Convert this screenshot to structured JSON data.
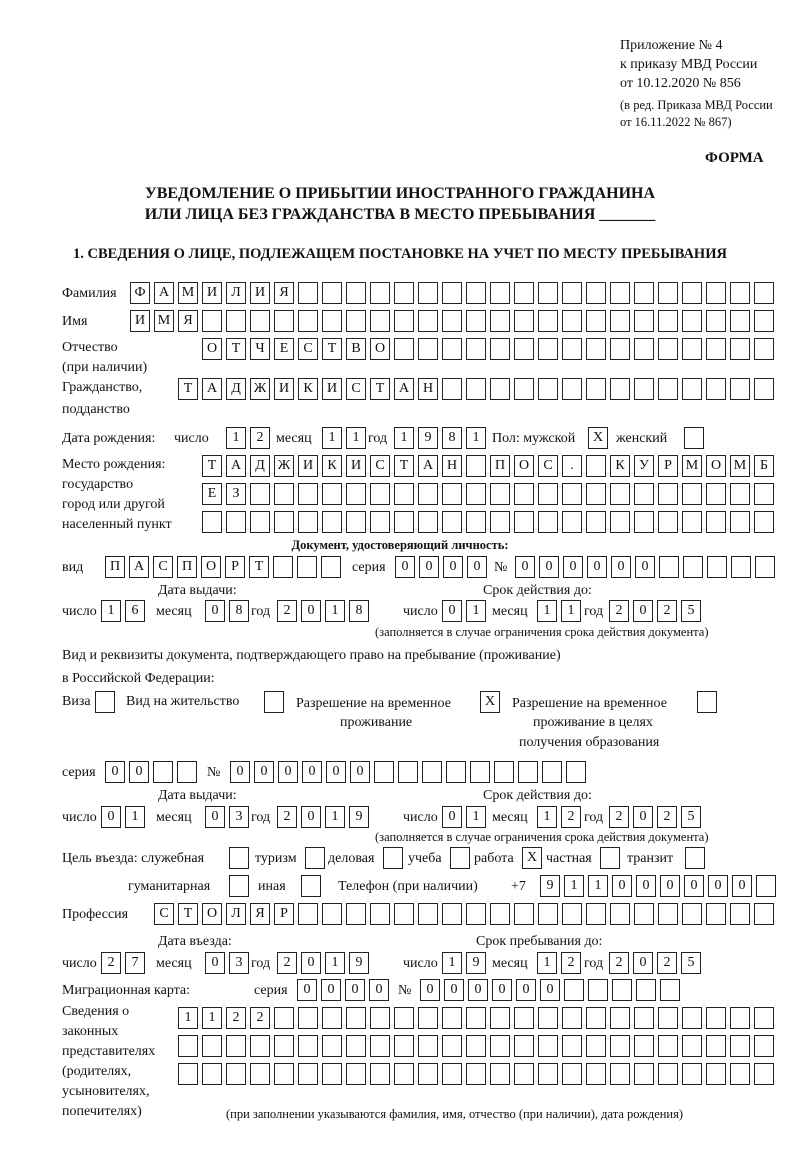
{
  "header": {
    "line1": "Приложение № 4",
    "line2": "к приказу МВД России",
    "line3": "от 10.12.2020 № 856",
    "line4": "(в ред. Приказа МВД России",
    "line5": "от 16.11.2022 № 867)",
    "form": "ФОРМА",
    "title1": "УВЕДОМЛЕНИЕ О ПРИБЫТИИ ИНОСТРАННОГО ГРАЖДАНИНА",
    "title2": "ИЛИ ЛИЦА БЕЗ ГРАЖДАНСТВА В МЕСТО ПРЕБЫВАНИЯ _______",
    "section1": "1. СВЕДЕНИЯ О ЛИЦЕ, ПОДЛЕЖАЩЕМ ПОСТАНОВКЕ НА УЧЕТ ПО МЕСТУ ПРЕБЫВАНИЯ"
  },
  "labels": {
    "surname": "Фамилия",
    "name": "Имя",
    "patronymic": "Отчество",
    "patronymic2": "(при наличии)",
    "citizenship": "Гражданство,",
    "citizenship2": "подданство",
    "dob": "Дата рождения:",
    "day": "число",
    "month": "месяц",
    "year": "год",
    "sex": "Пол: мужской",
    "female": "женский",
    "pob1": "Место рождения:",
    "pob2": "государство",
    "pob3": "город или другой",
    "pob4": "населенный пункт",
    "id_doc": "Документ, удостоверяющий личность:",
    "kind": "вид",
    "series": "серия",
    "number": "№",
    "issue_date": "Дата выдачи:",
    "valid_until": "Срок действия до:",
    "valid_note": "(заполняется в случае ограничения срока действия документа)",
    "right_doc1": "Вид и реквизиты документа, подтверждающего право на пребывание (проживание)",
    "right_doc2": "в Российской Федерации:",
    "visa": "Виза",
    "residence": "Вид на жительство",
    "temp1": "Разрешение на временное",
    "temp2": "проживание",
    "edu1": "Разрешение на временное",
    "edu2": "проживание в целях",
    "edu3": "получения образования",
    "purpose": "Цель въезда: служебная",
    "tourism": "туризм",
    "business": "деловая",
    "study": "учеба",
    "work": "работа",
    "private": "частная",
    "transit": "транзит",
    "humanitarian": "гуманитарная",
    "other": "иная",
    "phone": "Телефон (при наличии)",
    "phone_prefix": "+7",
    "profession": "Профессия",
    "entry_date": "Дата въезда:",
    "stay_until": "Срок пребывания до:",
    "migration_card": "Миграционная карта:",
    "rep1": "Сведения о",
    "rep2": "законных",
    "rep3": "представителях",
    "rep4": "(родителях,",
    "rep5": "усыновителях,",
    "rep6": "попечителях)",
    "rep_note": "(при заполнении указываются фамилия, имя, отчество (при наличии), дата рождения)"
  },
  "values": {
    "surname": "ФАМИЛИЯ",
    "name": "ИМЯ",
    "patronymic": "ОТЧЕСТВО",
    "citizenship": "ТАДЖИКИСТАН",
    "dob_day": "12",
    "dob_month": "11",
    "dob_year": "1981",
    "sex_male": "X",
    "sex_female": "",
    "pob_1": "ТАДЖИКИСТАН ПОС. КУРМОМБ",
    "pob_2": "ЕЗ",
    "pob_3": "",
    "id_kind": "ПАСПОРТ",
    "id_series": "0000",
    "id_number": "000000",
    "id_issue_day": "16",
    "id_issue_month": "08",
    "id_issue_year": "2018",
    "id_valid_day": "01",
    "id_valid_month": "11",
    "id_valid_year": "2025",
    "visa": "",
    "residence": "",
    "temp_residence": "X",
    "edu_residence": "",
    "rd_series": "00",
    "rd_number": "000000",
    "rd_issue_day": "01",
    "rd_issue_month": "03",
    "rd_issue_year": "2019",
    "rd_valid_day": "01",
    "rd_valid_month": "12",
    "rd_valid_year": "2025",
    "p_service": "",
    "p_tourism": "",
    "p_business": "",
    "p_study": "",
    "p_work": "X",
    "p_private": "",
    "p_transit": "",
    "p_humanitarian": "",
    "p_other": "",
    "phone": "911000000",
    "profession": "СТОЛЯР",
    "entry_day": "27",
    "entry_month": "03",
    "entry_year": "2019",
    "stay_day": "19",
    "stay_month": "12",
    "stay_year": "2025",
    "mc_series": "0000",
    "mc_number": "000000",
    "rep_1": "1122",
    "rep_2": "",
    "rep_3": ""
  }
}
